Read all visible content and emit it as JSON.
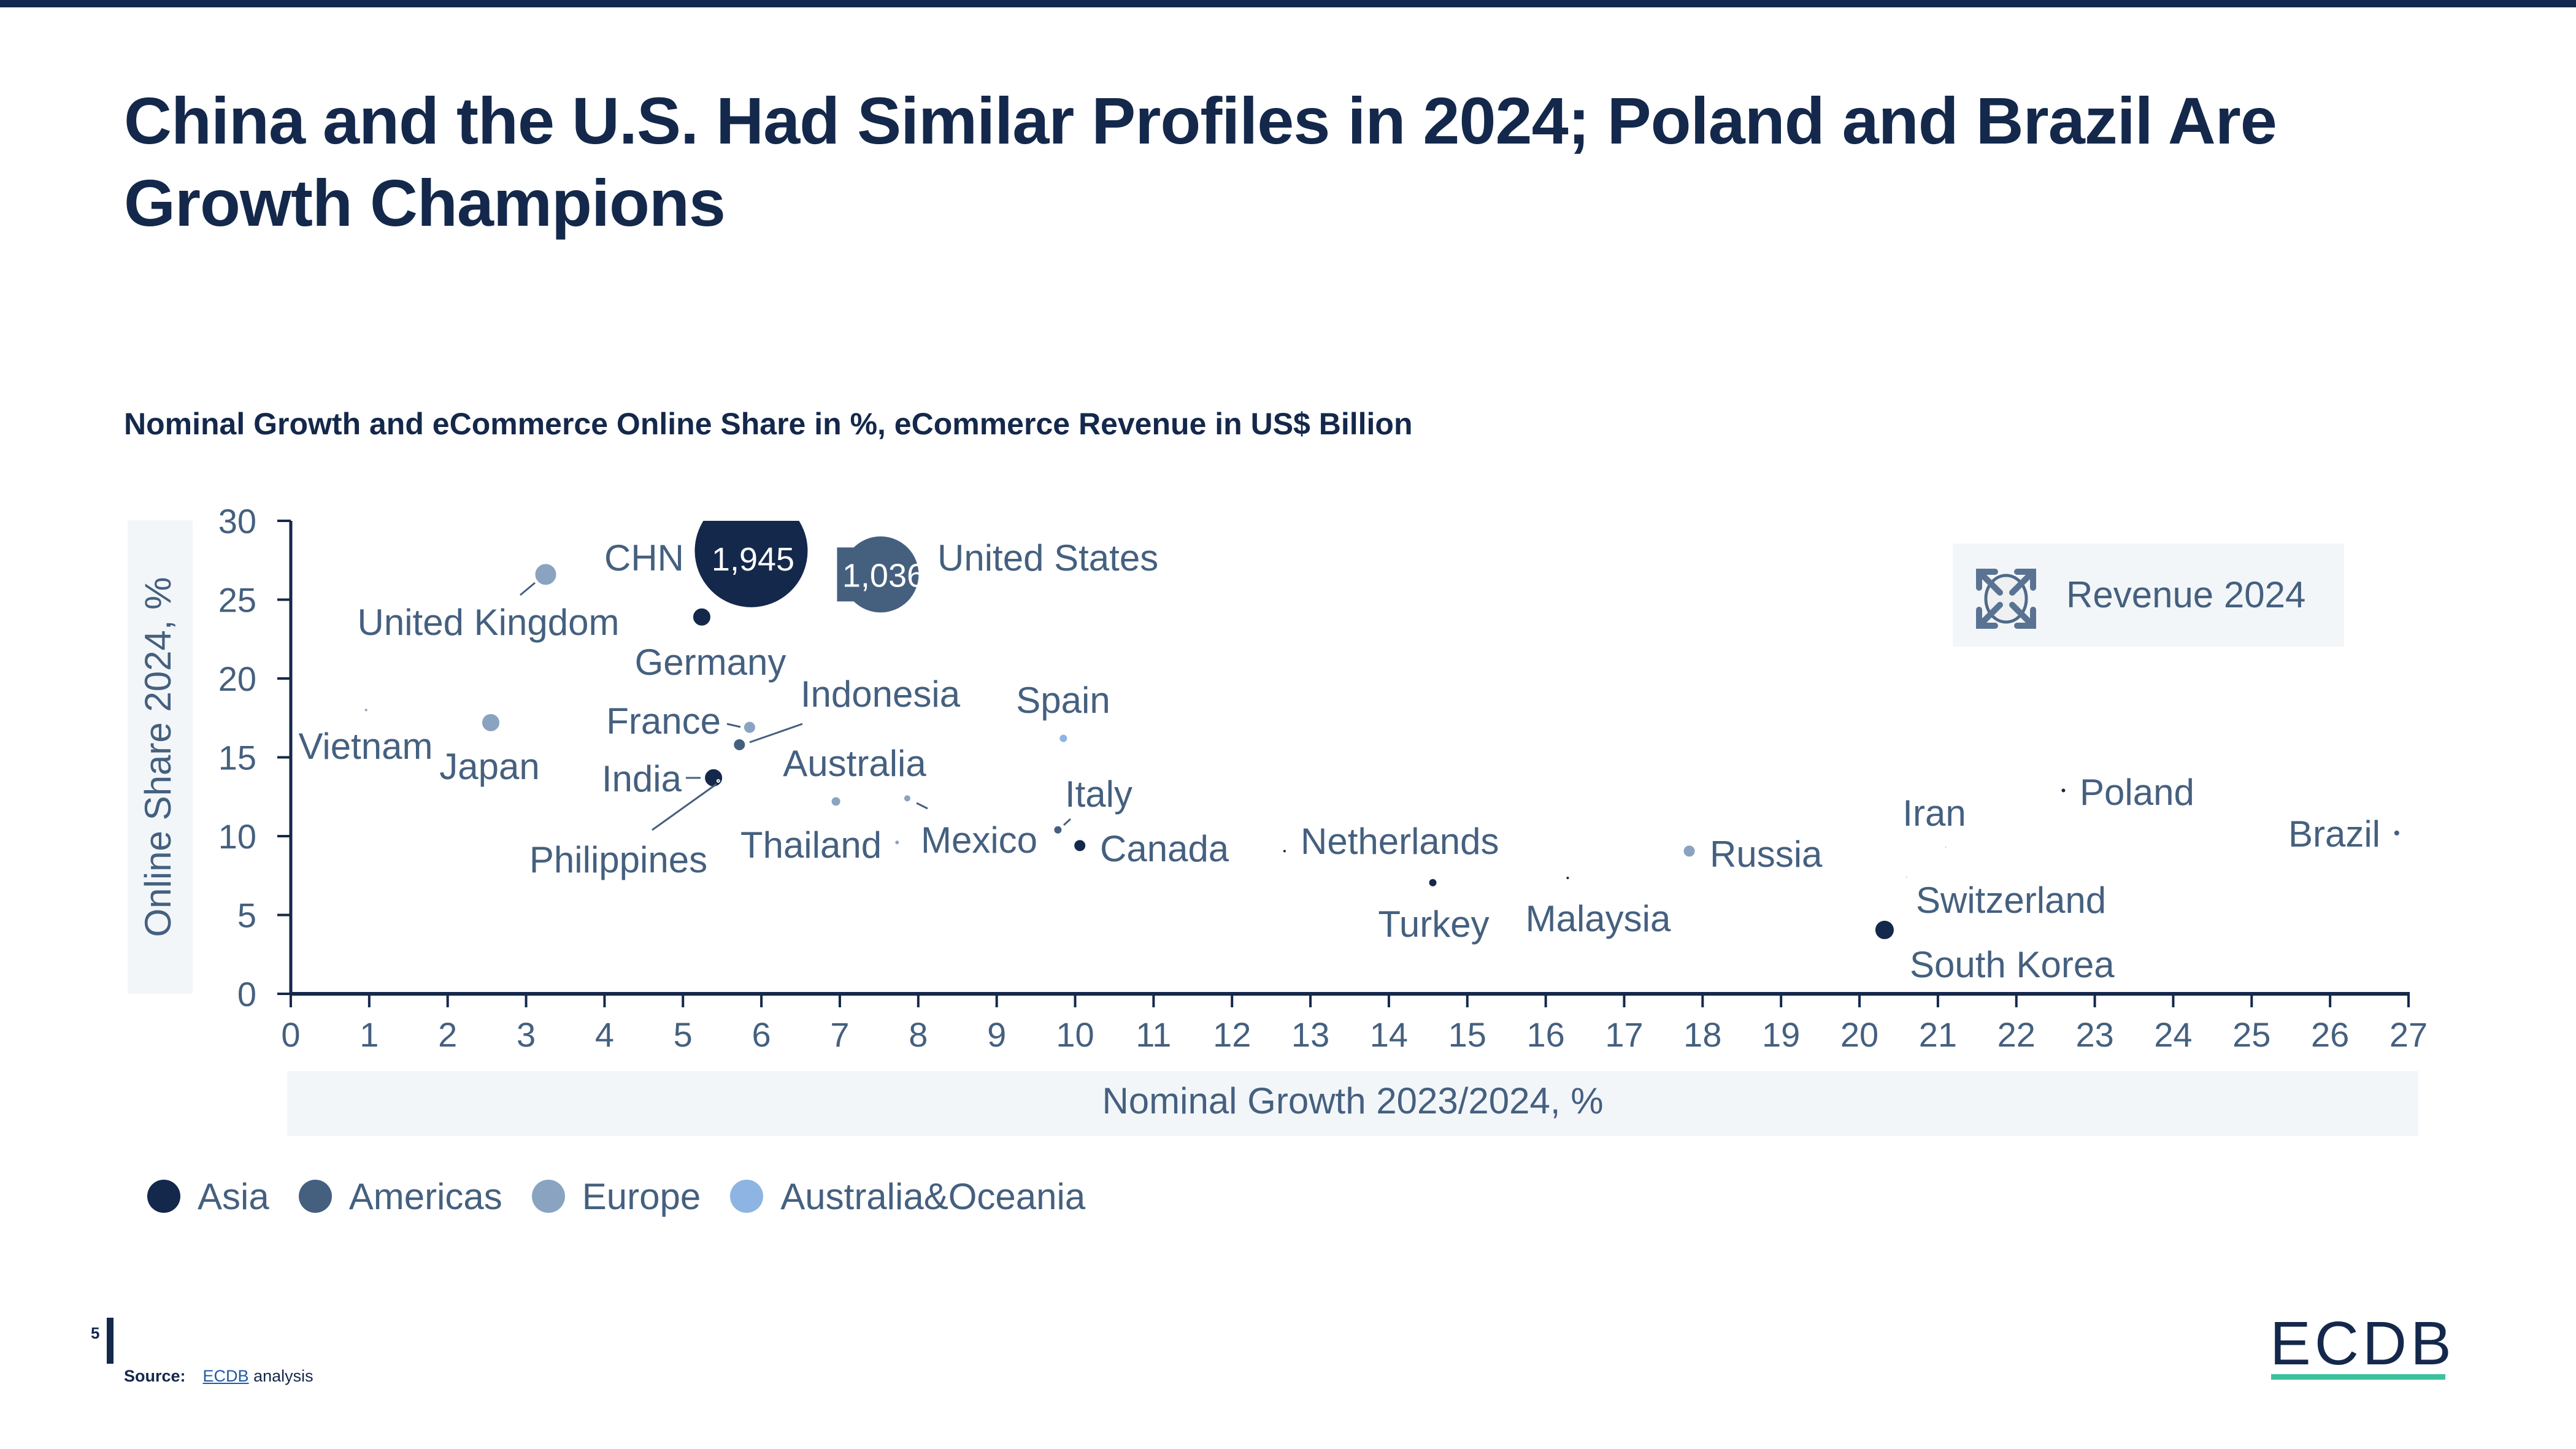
{
  "page": {
    "title": "China and the U.S. Had Similar Profiles in 2024; Poland and Brazil Are Growth Champions",
    "page_number": "5",
    "source_label": "Source:",
    "source_link": "ECDB",
    "source_text": "analysis",
    "logo": "ECDB",
    "colors": {
      "brand_dark": "#14284b",
      "logo_accent": "#3cc19d",
      "text": "#45607f",
      "panel": "#f3f6f9"
    }
  },
  "legend": {
    "items": [
      {
        "label": "Asia",
        "color": "#14284b"
      },
      {
        "label": "Americas",
        "color": "#45607f"
      },
      {
        "label": "Europe",
        "color": "#8aa3c0"
      },
      {
        "label": "Australia&Oceania",
        "color": "#8db4e2"
      }
    ],
    "size_legend": {
      "label": "Revenue 2024",
      "icon": "expand-arrows-icon"
    }
  },
  "chart_data": {
    "type": "scatter",
    "title": "Nominal Growth and eCommerce Online Share in %, eCommerce Revenue in US$ Billion",
    "xlabel": "Nominal Growth 2023/2024, %",
    "ylabel": "Online Share 2024, %",
    "xlim": [
      0,
      27
    ],
    "ylim": [
      0,
      30
    ],
    "x_ticks": [
      "0",
      "1",
      "2",
      "3",
      "4",
      "5",
      "6",
      "7",
      "8",
      "9",
      "10",
      "11",
      "12",
      "13",
      "14",
      "15",
      "16",
      "17",
      "18",
      "19",
      "20",
      "21",
      "22",
      "23",
      "24",
      "25",
      "26",
      "27"
    ],
    "y_ticks": [
      "0",
      "5",
      "10",
      "15",
      "20",
      "25",
      "30"
    ],
    "grid": false,
    "size_legend_label": "Revenue 2024",
    "bubble_labels": {
      "CHN": "1,945",
      "United States": "1,036"
    },
    "points": [
      {
        "label": "CHN",
        "x": 5.87,
        "y": 28.1,
        "revenue": 1945,
        "region": "Asia"
      },
      {
        "label": "United States",
        "x": 7.52,
        "y": 26.6,
        "revenue": 1036,
        "region": "Americas"
      },
      {
        "label": "United Kingdom",
        "x": 3.25,
        "y": 26.6,
        "region": "Europe"
      },
      {
        "label": "Germany",
        "x": 5.24,
        "y": 23.9,
        "region": "Asia"
      },
      {
        "label": "Vietnam",
        "x": 0.96,
        "y": 18.0,
        "region": "Europe"
      },
      {
        "label": "Japan",
        "x": 2.55,
        "y": 17.2,
        "region": "Europe"
      },
      {
        "label": "France",
        "x": 5.85,
        "y": 16.9,
        "region": "Europe"
      },
      {
        "label": "Indonesia",
        "x": 5.72,
        "y": 15.8,
        "region": "Americas"
      },
      {
        "label": "India",
        "x": 5.39,
        "y": 13.7,
        "region": "Asia"
      },
      {
        "label": "Philippines",
        "x": 5.45,
        "y": 13.5,
        "region": "Asia"
      },
      {
        "label": "Australia",
        "x": 6.95,
        "y": 12.2,
        "region": "Europe"
      },
      {
        "label": "Mexico",
        "x": 7.86,
        "y": 12.4,
        "region": "Europe"
      },
      {
        "label": "Thailand",
        "x": 7.73,
        "y": 9.6,
        "region": "Europe"
      },
      {
        "label": "Spain",
        "x": 9.85,
        "y": 16.2,
        "region": "Australia&Oceania"
      },
      {
        "label": "Italy",
        "x": 9.78,
        "y": 10.4,
        "region": "Americas"
      },
      {
        "label": "Canada",
        "x": 10.06,
        "y": 9.4,
        "region": "Asia"
      },
      {
        "label": "Netherlands",
        "x": 12.67,
        "y": 9.05,
        "region": "Asia"
      },
      {
        "label": "Turkey",
        "x": 14.56,
        "y": 7.05,
        "region": "Asia"
      },
      {
        "label": "Malaysia",
        "x": 16.28,
        "y": 7.35,
        "region": "Asia"
      },
      {
        "label": "Russia",
        "x": 17.83,
        "y": 9.05,
        "region": "Europe"
      },
      {
        "label": "Iran",
        "x": 21.1,
        "y": 9.3,
        "region": "Asia"
      },
      {
        "label": "Switzerland",
        "x": 20.6,
        "y": 7.4,
        "region": "Asia"
      },
      {
        "label": "South Korea",
        "x": 20.32,
        "y": 4.05,
        "region": "Asia"
      },
      {
        "label": "Poland",
        "x": 22.6,
        "y": 12.9,
        "region": "Asia"
      },
      {
        "label": "Brazil",
        "x": 26.85,
        "y": 10.2,
        "region": "Americas"
      }
    ]
  }
}
